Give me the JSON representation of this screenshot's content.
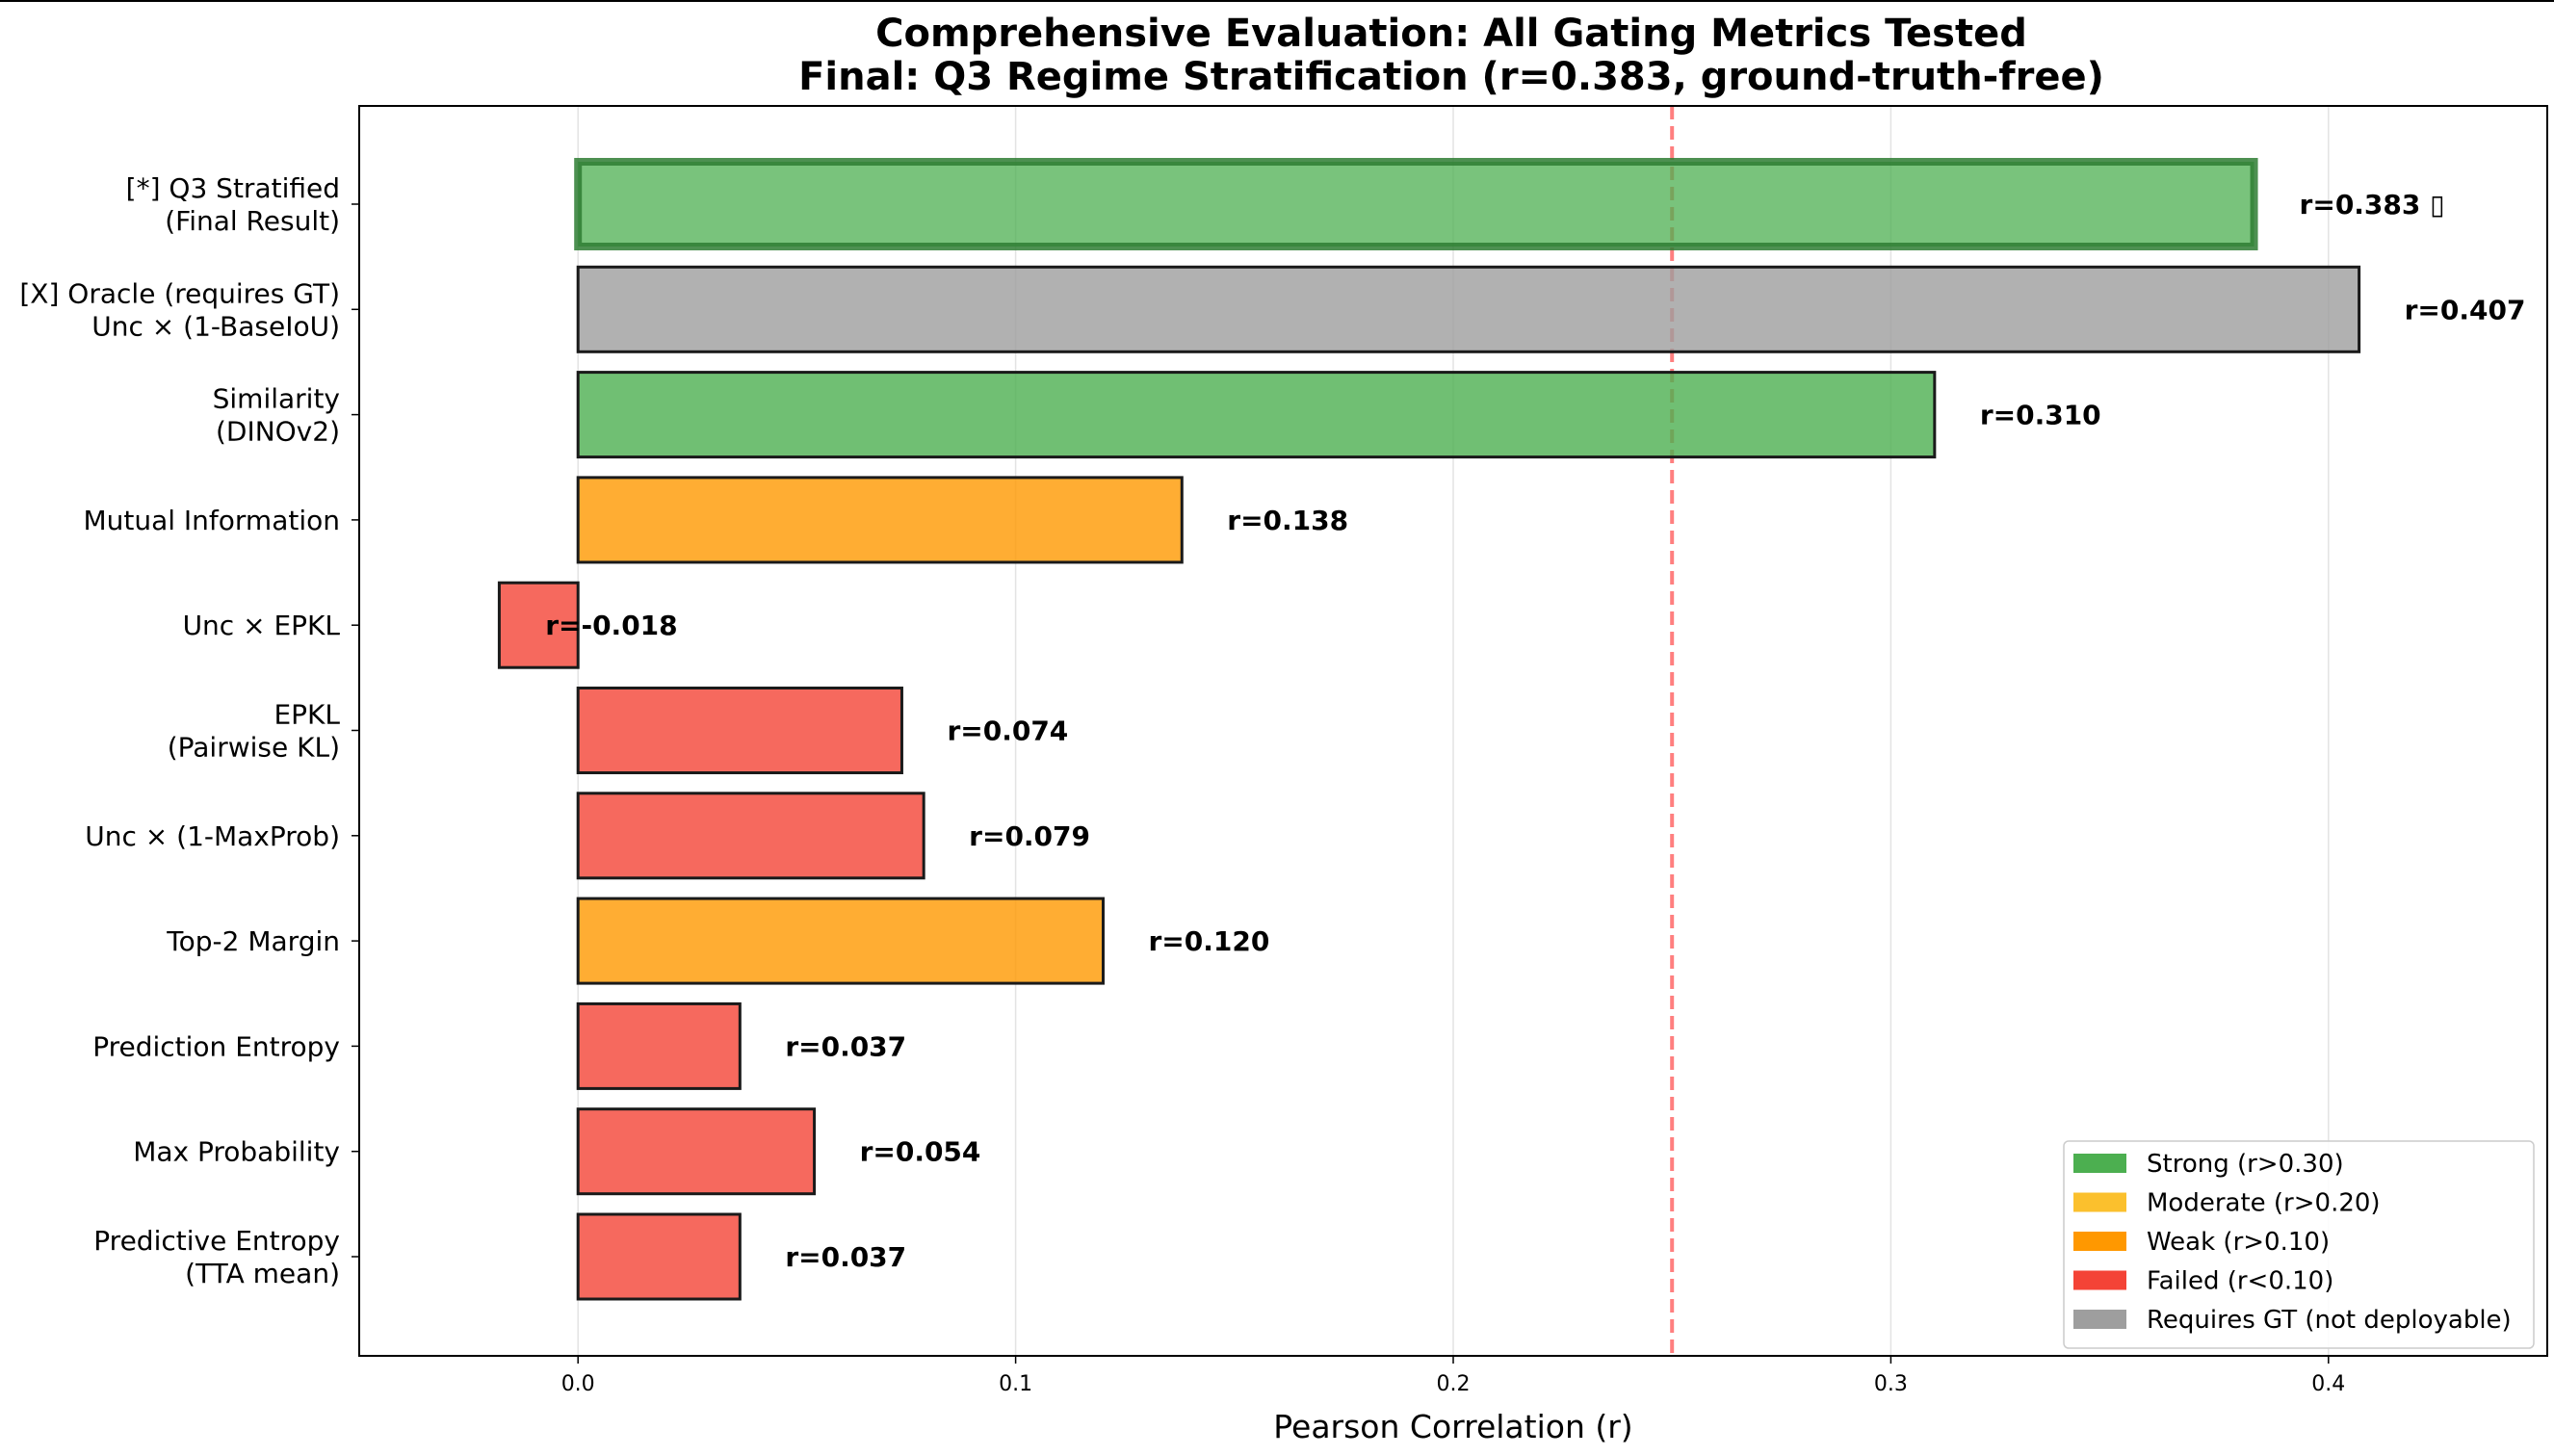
{
  "chart_data": {
    "type": "bar",
    "orientation": "horizontal",
    "title": "Comprehensive Evaluation: All Gating Metrics Tested",
    "subtitle": "Final: Q3 Regime Stratification (r=0.383, ground-truth-free)",
    "xlabel": "Pearson Correlation (r)",
    "ylabel": "",
    "xlim": [
      -0.05,
      0.45
    ],
    "xticks": [
      0.0,
      0.1,
      0.2,
      0.3,
      0.4
    ],
    "xtick_labels": [
      "0.0",
      "0.1",
      "0.2",
      "0.3",
      "0.4"
    ],
    "grid": true,
    "threshold_line": {
      "value": 0.25,
      "color": "#ff0000",
      "style": "dashed"
    },
    "categories": [
      {
        "label_lines": [
          "[*] Q3 Stratified",
          "(Final Result)"
        ],
        "value": 0.383,
        "value_label": "r=0.383 ▯",
        "class": "Strong",
        "highlight": true
      },
      {
        "label_lines": [
          "[X] Oracle (requires GT)",
          "Unc × (1-BaseIoU)"
        ],
        "value": 0.407,
        "value_label": "r=0.407",
        "class": "Requires GT",
        "highlight": false
      },
      {
        "label_lines": [
          "Similarity",
          "(DINOv2)"
        ],
        "value": 0.31,
        "value_label": "r=0.310",
        "class": "Strong",
        "highlight": false
      },
      {
        "label_lines": [
          "Mutual Information"
        ],
        "value": 0.138,
        "value_label": "r=0.138",
        "class": "Weak",
        "highlight": false
      },
      {
        "label_lines": [
          "Unc × EPKL"
        ],
        "value": -0.018,
        "value_label": "r=-0.018",
        "class": "Failed",
        "highlight": false
      },
      {
        "label_lines": [
          "EPKL",
          "(Pairwise KL)"
        ],
        "value": 0.074,
        "value_label": "r=0.074",
        "class": "Failed",
        "highlight": false
      },
      {
        "label_lines": [
          "Unc × (1-MaxProb)"
        ],
        "value": 0.079,
        "value_label": "r=0.079",
        "class": "Failed",
        "highlight": false
      },
      {
        "label_lines": [
          "Top-2 Margin"
        ],
        "value": 0.12,
        "value_label": "r=0.120",
        "class": "Weak",
        "highlight": false
      },
      {
        "label_lines": [
          "Prediction Entropy"
        ],
        "value": 0.037,
        "value_label": "r=0.037",
        "class": "Failed",
        "highlight": false
      },
      {
        "label_lines": [
          "Max Probability"
        ],
        "value": 0.054,
        "value_label": "r=0.054",
        "class": "Failed",
        "highlight": false
      },
      {
        "label_lines": [
          "Predictive Entropy",
          "(TTA mean)"
        ],
        "value": 0.037,
        "value_label": "r=0.037",
        "class": "Failed",
        "highlight": false
      }
    ],
    "class_colors": {
      "Strong": "#4caf50",
      "Moderate": "#fbc02d",
      "Weak": "#ff9800",
      "Failed": "#f44336",
      "Requires GT": "#9e9e9e"
    },
    "highlight_edge_color": "#2e7d32",
    "legend": {
      "position": "lower-right",
      "entries": [
        {
          "label": "Strong (r>0.30)",
          "color": "#4caf50"
        },
        {
          "label": "Moderate (r>0.20)",
          "color": "#fbc02d"
        },
        {
          "label": "Weak (r>0.10)",
          "color": "#ff9800"
        },
        {
          "label": "Failed (r<0.10)",
          "color": "#f44336"
        },
        {
          "label": "Requires GT (not deployable)",
          "color": "#9e9e9e"
        }
      ]
    }
  }
}
